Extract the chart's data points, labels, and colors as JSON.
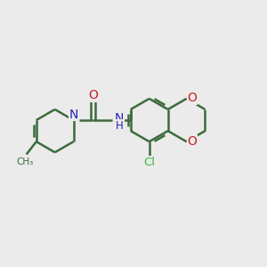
{
  "background_color": "#ebebeb",
  "bond_color": "#3d6b3d",
  "N_color": "#2222bb",
  "O_color": "#cc2020",
  "Cl_color": "#3db83d",
  "bond_width": 1.8,
  "figsize": [
    3.0,
    3.0
  ],
  "dpi": 100,
  "xlim": [
    0,
    10
  ],
  "ylim": [
    0,
    10
  ]
}
